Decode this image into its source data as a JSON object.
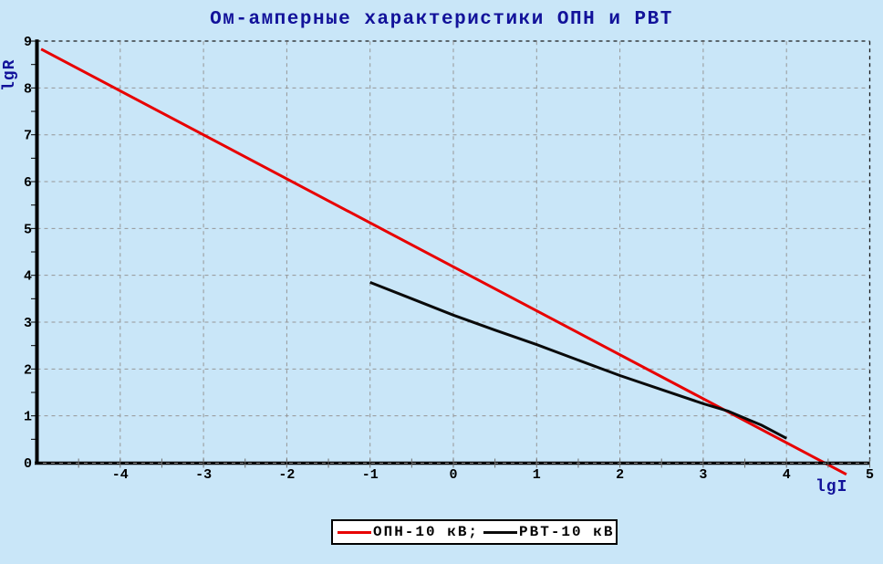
{
  "title": "Ом-амперные характеристики ОПН и РВТ",
  "colors": {
    "background": "#C9E6F8",
    "title_text": "#12129A",
    "axis_title_text": "#12129A",
    "tick_label_text": "#000000",
    "grid": "#969696",
    "frame_dashed": "#1A1A1A",
    "axis": "#000000",
    "series_opn": "#E80000",
    "series_rvt": "#0A0A0A",
    "legend_background": "#FFFFFF",
    "legend_border": "#000000"
  },
  "chart_data": {
    "type": "line",
    "title": "Ом-амперные характеристики ОПН и РВТ",
    "xlabel": "lgI",
    "ylabel": "lgR",
    "xlim": [
      -5,
      5
    ],
    "ylim": [
      0,
      9
    ],
    "x_ticks": [
      -4,
      -3,
      -2,
      -1,
      0,
      1,
      2,
      3,
      4,
      5
    ],
    "y_ticks": [
      0,
      1,
      2,
      3,
      4,
      5,
      6,
      7,
      8,
      9
    ],
    "minor_tick_step": 0.5,
    "grid": true,
    "grid_style": "dashed",
    "legend_position": "bottom-center",
    "series": [
      {
        "name": "ОПН-10 кВ",
        "color": "#E80000",
        "points": [
          [
            -4.95,
            8.83
          ],
          [
            4.72,
            -0.25
          ]
        ]
      },
      {
        "name": "РВТ-10 кВ",
        "color": "#0A0A0A",
        "points": [
          [
            -1.0,
            3.85
          ],
          [
            -0.5,
            3.5
          ],
          [
            0.0,
            3.15
          ],
          [
            0.5,
            2.83
          ],
          [
            1.0,
            2.52
          ],
          [
            1.5,
            2.19
          ],
          [
            2.0,
            1.86
          ],
          [
            2.5,
            1.56
          ],
          [
            3.0,
            1.26
          ],
          [
            3.3,
            1.1
          ],
          [
            3.5,
            0.95
          ],
          [
            3.7,
            0.8
          ],
          [
            3.85,
            0.66
          ],
          [
            4.0,
            0.52
          ]
        ]
      }
    ]
  },
  "legend": {
    "items": [
      {
        "label": "ОПН-10 кВ;",
        "color": "#E80000"
      },
      {
        "label": "РВТ-10 кВ",
        "color": "#0A0A0A"
      }
    ]
  }
}
